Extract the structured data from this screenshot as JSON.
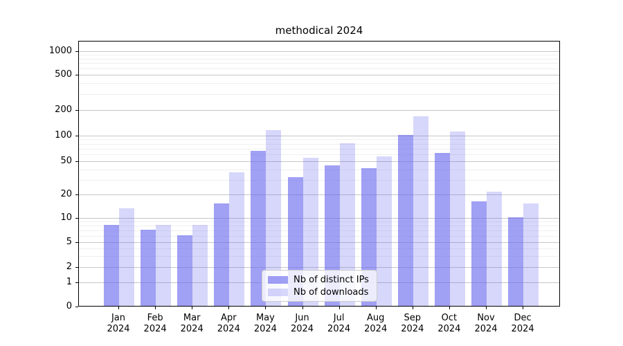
{
  "chart_data": {
    "type": "bar",
    "title": "methodical 2024",
    "categories": [
      "Jan",
      "Feb",
      "Mar",
      "Apr",
      "May",
      "Jun",
      "Jul",
      "Aug",
      "Sep",
      "Oct",
      "Nov",
      "Dec"
    ],
    "x_tick_year": "2024",
    "series": [
      {
        "name": "Nb of distinct IPs",
        "color": "rgba(102,102,238,0.62)",
        "values": [
          8,
          7,
          6,
          15,
          65,
          32,
          44,
          41,
          100,
          62,
          16,
          10
        ]
      },
      {
        "name": "Nb of downloads",
        "color": "rgba(102,102,238,0.26)",
        "values": [
          13,
          8,
          8,
          36,
          113,
          54,
          80,
          56,
          165,
          110,
          21,
          15
        ]
      }
    ],
    "yticks": [
      0,
      1,
      2,
      5,
      10,
      20,
      50,
      100,
      200,
      500,
      1000
    ],
    "minor_yticks": [
      3,
      4,
      6,
      7,
      8,
      9,
      30,
      40,
      60,
      70,
      80,
      90,
      300,
      400,
      600,
      700,
      800,
      900
    ],
    "yscale": "symlog",
    "ylim": [
      0,
      1300
    ],
    "grid": true,
    "legend_position": "lower center",
    "grid_major_color": "#c6c6c6",
    "grid_minor_color": "#efefef"
  }
}
